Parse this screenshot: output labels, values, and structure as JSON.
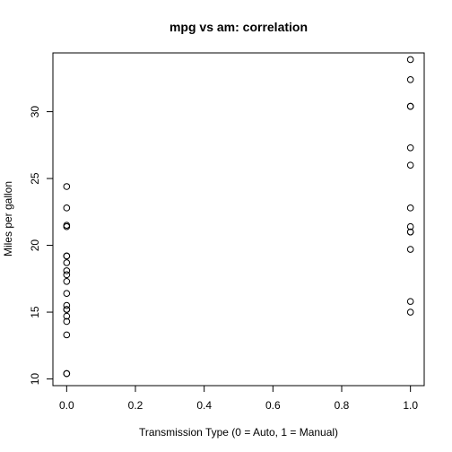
{
  "chart_data": {
    "type": "scatter",
    "title": "mpg vs am:  correlation",
    "xlabel": "Transmission Type (0 = Auto, 1 = Manual)",
    "ylabel": "Miles per gallon",
    "xlim": [
      -0.04,
      1.04
    ],
    "ylim": [
      9.5,
      34.4
    ],
    "xticks": [
      0,
      0.2,
      0.4,
      0.6,
      0.8,
      1
    ],
    "xtick_labels": [
      "0.0",
      "0.2",
      "0.4",
      "0.6",
      "0.8",
      "1.0"
    ],
    "yticks": [
      10,
      15,
      20,
      25,
      30
    ],
    "ytick_labels": [
      "10",
      "15",
      "20",
      "25",
      "30"
    ],
    "grid": false,
    "legend": "none",
    "marker": "open-circle",
    "points": [
      {
        "x": 0,
        "y": 21.4
      },
      {
        "x": 0,
        "y": 18.7
      },
      {
        "x": 0,
        "y": 18.1
      },
      {
        "x": 0,
        "y": 14.3
      },
      {
        "x": 0,
        "y": 24.4
      },
      {
        "x": 0,
        "y": 22.8
      },
      {
        "x": 0,
        "y": 19.2
      },
      {
        "x": 0,
        "y": 17.8
      },
      {
        "x": 0,
        "y": 16.4
      },
      {
        "x": 0,
        "y": 17.3
      },
      {
        "x": 0,
        "y": 15.2
      },
      {
        "x": 0,
        "y": 10.4
      },
      {
        "x": 0,
        "y": 10.4
      },
      {
        "x": 0,
        "y": 14.7
      },
      {
        "x": 0,
        "y": 21.5
      },
      {
        "x": 0,
        "y": 15.5
      },
      {
        "x": 0,
        "y": 15.2
      },
      {
        "x": 0,
        "y": 13.3
      },
      {
        "x": 0,
        "y": 19.2
      },
      {
        "x": 1,
        "y": 21.0
      },
      {
        "x": 1,
        "y": 21.0
      },
      {
        "x": 1,
        "y": 22.8
      },
      {
        "x": 1,
        "y": 32.4
      },
      {
        "x": 1,
        "y": 30.4
      },
      {
        "x": 1,
        "y": 33.9
      },
      {
        "x": 1,
        "y": 27.3
      },
      {
        "x": 1,
        "y": 26.0
      },
      {
        "x": 1,
        "y": 30.4
      },
      {
        "x": 1,
        "y": 15.8
      },
      {
        "x": 1,
        "y": 19.7
      },
      {
        "x": 1,
        "y": 15.0
      },
      {
        "x": 1,
        "y": 21.4
      }
    ]
  }
}
